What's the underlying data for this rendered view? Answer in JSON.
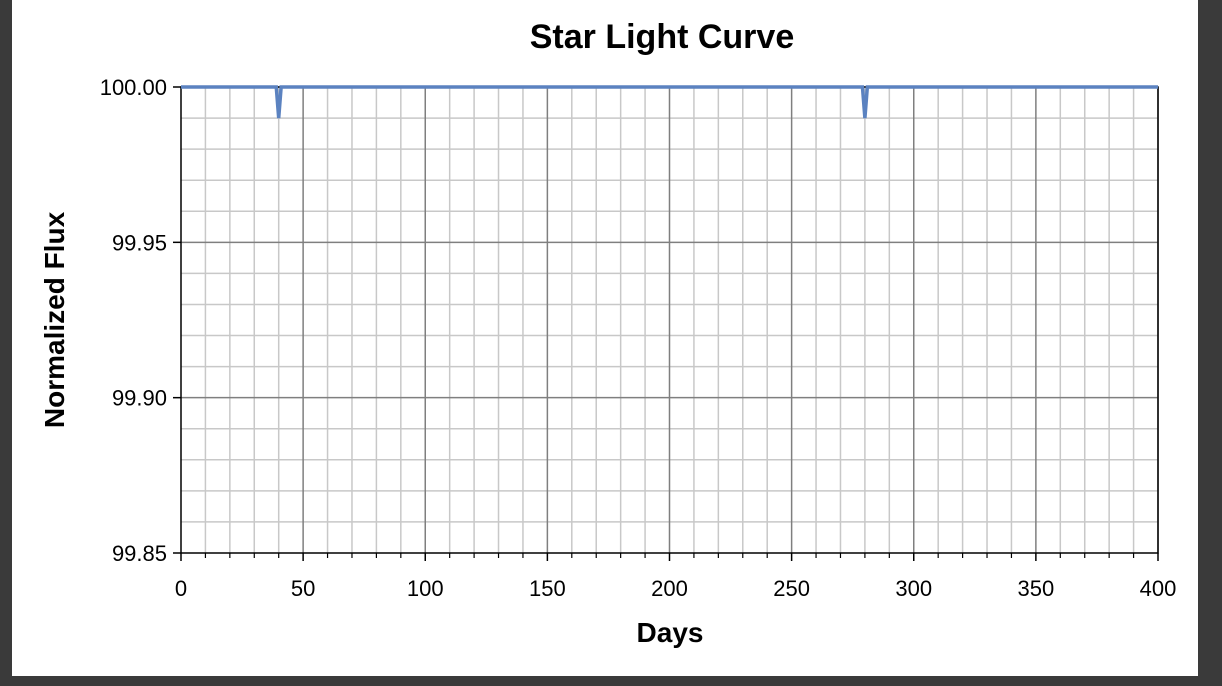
{
  "chart_data": {
    "type": "line",
    "title": "Star Light Curve",
    "xlabel": "Days",
    "ylabel": "Normalized Flux",
    "xlim": [
      0,
      400
    ],
    "ylim": [
      99.85,
      100.0
    ],
    "x_ticks": [
      "0",
      "50",
      "100",
      "150",
      "200",
      "250",
      "300",
      "350",
      "400"
    ],
    "y_ticks": [
      "100.00",
      "99.95",
      "99.90",
      "99.85"
    ],
    "grid": true,
    "legend": "none",
    "line_color": "#5b82c0",
    "series": [
      {
        "x": [
          0,
          39,
          40,
          41,
          279,
          280,
          281,
          400
        ],
        "values": [
          100.0,
          100.0,
          99.99,
          100.0,
          100.0,
          99.99,
          100.0,
          100.0
        ]
      }
    ]
  }
}
